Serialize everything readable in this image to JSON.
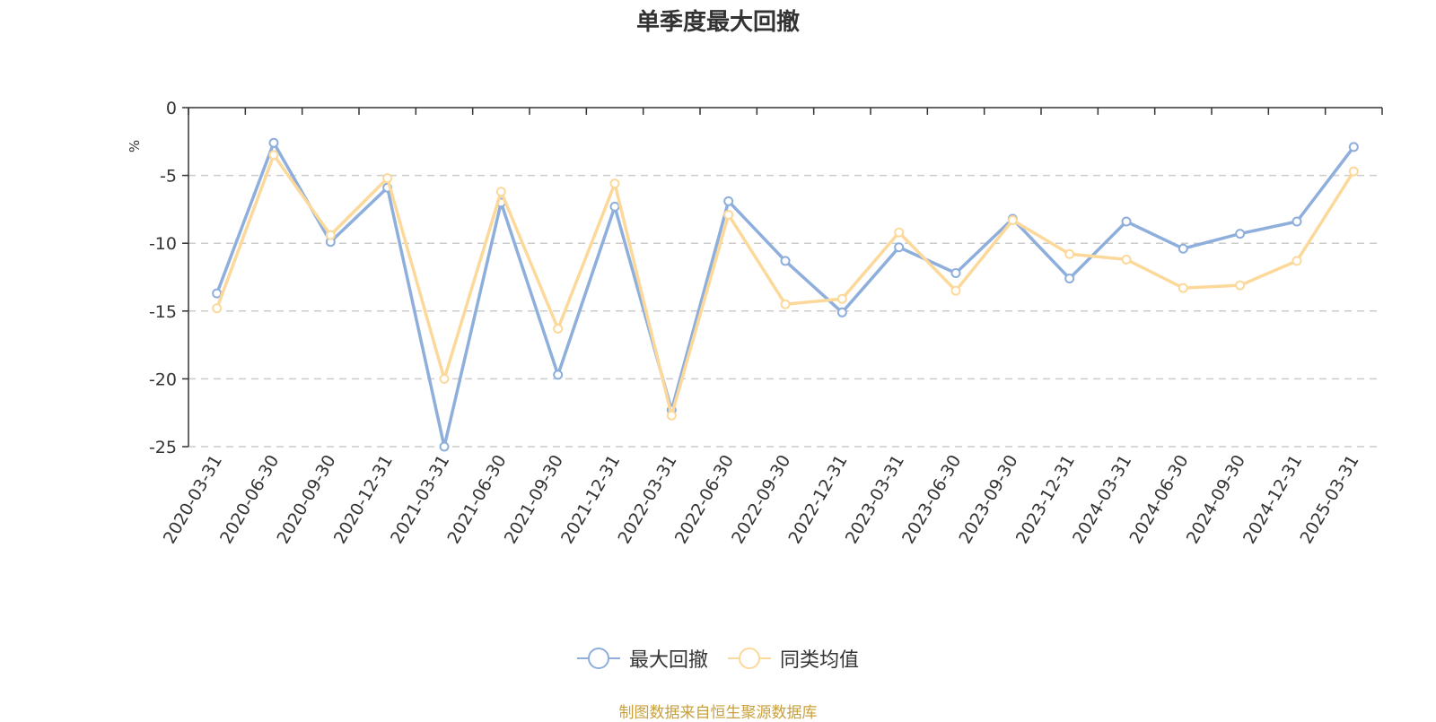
{
  "title": "单季度最大回撤",
  "source_note": "制图数据来自恒生聚源数据库",
  "colors": {
    "series1": "#8eaedc",
    "series2": "#fcd99a",
    "unit": "#e02020",
    "grid": "#cccccc",
    "axis": "#333333"
  },
  "chart_data": {
    "type": "line",
    "title": "单季度最大回撤",
    "ylabel": "%",
    "ylim": [
      -25,
      0
    ],
    "yticks": [
      0,
      -5,
      -10,
      -15,
      -20,
      -25
    ],
    "grid": true,
    "legend_position": "bottom",
    "categories": [
      "2020-03-31",
      "2020-06-30",
      "2020-09-30",
      "2020-12-31",
      "2021-03-31",
      "2021-06-30",
      "2021-09-30",
      "2021-12-31",
      "2022-03-31",
      "2022-06-30",
      "2022-09-30",
      "2022-12-31",
      "2023-03-31",
      "2023-06-30",
      "2023-09-30",
      "2023-12-31",
      "2024-03-31",
      "2024-06-30",
      "2024-09-30",
      "2024-12-31",
      "2025-03-31"
    ],
    "series": [
      {
        "name": "最大回撤",
        "color": "#8eaedc",
        "values": [
          -13.7,
          -2.6,
          -9.9,
          -5.9,
          -25.0,
          -7.0,
          -19.7,
          -7.3,
          -22.3,
          -6.9,
          -11.3,
          -15.1,
          -10.3,
          -12.2,
          -8.2,
          -12.6,
          -8.4,
          -10.4,
          -9.3,
          -8.4,
          -2.9
        ]
      },
      {
        "name": "同类均值",
        "color": "#fcd99a",
        "values": [
          -14.8,
          -3.5,
          -9.4,
          -5.2,
          -20.0,
          -6.2,
          -16.3,
          -5.6,
          -22.7,
          -7.9,
          -14.5,
          -14.1,
          -9.2,
          -13.5,
          -8.3,
          -10.8,
          -11.2,
          -13.3,
          -13.1,
          -11.3,
          -4.7
        ]
      }
    ]
  }
}
